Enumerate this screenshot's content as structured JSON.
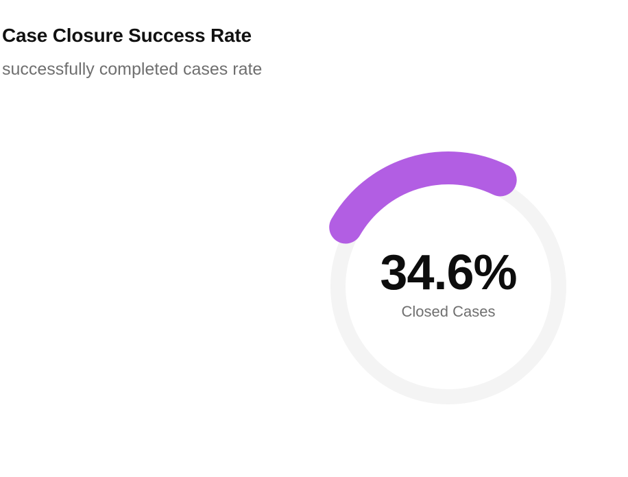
{
  "header": {
    "title": "Case Closure Success Rate",
    "subtitle": "successfully completed cases rate"
  },
  "chart_data": {
    "type": "gauge",
    "value": 34.6,
    "max": 100,
    "value_text": "34.6%",
    "label": "Closed Cases",
    "arc_color": "#b25ee3",
    "track_color": "#f4f4f4"
  }
}
